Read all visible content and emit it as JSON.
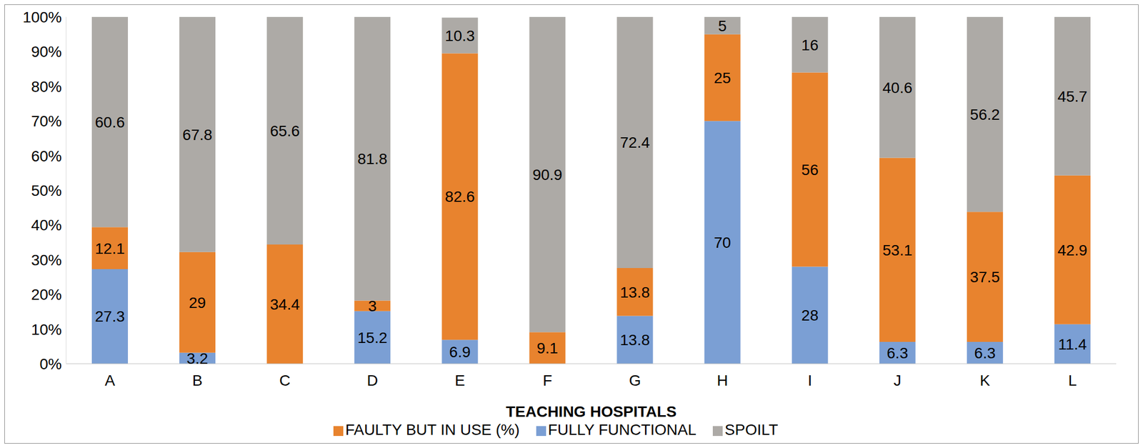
{
  "chart_data": {
    "type": "bar",
    "stacked": true,
    "data_labels": true,
    "grid": false,
    "legend": "bottom",
    "x_label": "TEACHING HOSPITALS",
    "categories": [
      "A",
      "B",
      "C",
      "D",
      "E",
      "F",
      "G",
      "H",
      "I",
      "J",
      "K",
      "L"
    ],
    "series": [
      {
        "name": "FULLY FUNCTIONAL",
        "color": "#7b9fd4",
        "values": [
          27.3,
          3.2,
          0,
          15.2,
          6.9,
          0,
          13.8,
          70,
          28,
          6.3,
          6.3,
          11.4
        ]
      },
      {
        "name": "FAULTY BUT IN USE (%)",
        "color": "#e8832e",
        "values": [
          12.1,
          29,
          34.4,
          3,
          82.6,
          9.1,
          13.8,
          25,
          56,
          53.1,
          37.5,
          42.9
        ]
      },
      {
        "name": "SPOILT",
        "color": "#adaaa6",
        "values": [
          60.6,
          67.8,
          65.6,
          81.8,
          10.3,
          90.9,
          72.4,
          5,
          16,
          40.6,
          56.2,
          45.7
        ]
      }
    ],
    "ylim": [
      0,
      100
    ],
    "yticks": [
      {
        "value": 0,
        "label": "0%"
      },
      {
        "value": 10,
        "label": "10%"
      },
      {
        "value": 20,
        "label": "20%"
      },
      {
        "value": 30,
        "label": "30%"
      },
      {
        "value": 40,
        "label": "40%"
      },
      {
        "value": 50,
        "label": "50%"
      },
      {
        "value": 60,
        "label": "60%"
      },
      {
        "value": 70,
        "label": "70%"
      },
      {
        "value": 80,
        "label": "80%"
      },
      {
        "value": 90,
        "label": "90%"
      },
      {
        "value": 100,
        "label": "100%"
      }
    ]
  }
}
